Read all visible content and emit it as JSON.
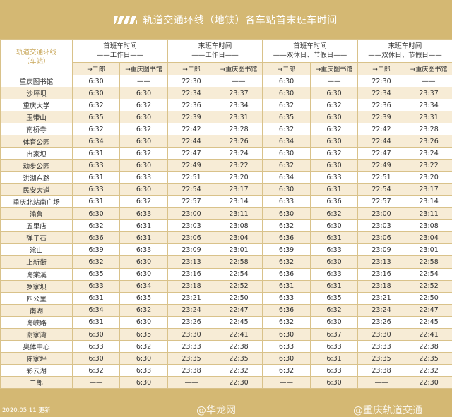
{
  "header": {
    "title": "轨道交通环线（地铁）各车站首末班车时间",
    "logo": "CRT logo"
  },
  "table": {
    "station_header": [
      "轨道交通环线",
      "（车站）"
    ],
    "groups": [
      {
        "title": "首班车时间",
        "sub": "——工作日——"
      },
      {
        "title": "末班车时间",
        "sub": "——工作日——"
      },
      {
        "title": "首班车时间",
        "sub": "——双休日、节假日——"
      },
      {
        "title": "末班车时间",
        "sub": "——双休日、节假日——"
      }
    ],
    "directions": [
      "→二郎",
      "→重庆图书馆",
      "→二郎",
      "→重庆图书馆",
      "→二郎",
      "→重庆图书馆",
      "→二郎",
      "→重庆图书馆"
    ],
    "rows": [
      [
        "重庆图书馆",
        "6:30",
        "——",
        "22:30",
        "——",
        "6:30",
        "——",
        "22:30",
        "——"
      ],
      [
        "沙坪坝",
        "6:30",
        "6:30",
        "22:34",
        "23:37",
        "6:30",
        "6:30",
        "22:34",
        "23:37"
      ],
      [
        "重庆大学",
        "6:32",
        "6:32",
        "22:36",
        "23:34",
        "6:32",
        "6:32",
        "22:36",
        "23:34"
      ],
      [
        "玉带山",
        "6:35",
        "6:30",
        "22:39",
        "23:31",
        "6:35",
        "6:30",
        "22:39",
        "23:31"
      ],
      [
        "南桥寺",
        "6:32",
        "6:32",
        "22:42",
        "23:28",
        "6:32",
        "6:32",
        "22:42",
        "23:28"
      ],
      [
        "体育公园",
        "6:34",
        "6:30",
        "22:44",
        "23:26",
        "6:34",
        "6:30",
        "22:44",
        "23:26"
      ],
      [
        "冉家坝",
        "6:31",
        "6:32",
        "22:47",
        "23:24",
        "6:30",
        "6:32",
        "22:47",
        "23:24"
      ],
      [
        "动步公园",
        "6:33",
        "6:30",
        "22:49",
        "23:22",
        "6:32",
        "6:30",
        "22:49",
        "23:22"
      ],
      [
        "洪湖东路",
        "6:31",
        "6:33",
        "22:51",
        "23:20",
        "6:34",
        "6:33",
        "22:51",
        "23:20"
      ],
      [
        "民安大道",
        "6:33",
        "6:30",
        "22:54",
        "23:17",
        "6:30",
        "6:31",
        "22:54",
        "23:17"
      ],
      [
        "重庆北站南广场",
        "6:31",
        "6:32",
        "22:57",
        "23:14",
        "6:33",
        "6:36",
        "22:57",
        "23:14"
      ],
      [
        "渝鲁",
        "6:30",
        "6:33",
        "23:00",
        "23:11",
        "6:30",
        "6:32",
        "23:00",
        "23:11"
      ],
      [
        "五里店",
        "6:32",
        "6:31",
        "23:03",
        "23:08",
        "6:32",
        "6:30",
        "23:03",
        "23:08"
      ],
      [
        "弹子石",
        "6:36",
        "6:31",
        "23:06",
        "23:04",
        "6:36",
        "6:31",
        "23:06",
        "23:04"
      ],
      [
        "涂山",
        "6:39",
        "6:33",
        "23:09",
        "23:01",
        "6:39",
        "6:33",
        "23:09",
        "23:01"
      ],
      [
        "上新街",
        "6:32",
        "6:30",
        "23:13",
        "22:58",
        "6:32",
        "6:30",
        "23:13",
        "22:58"
      ],
      [
        "海棠溪",
        "6:35",
        "6:30",
        "23:16",
        "22:54",
        "6:36",
        "6:33",
        "23:16",
        "22:54"
      ],
      [
        "罗家坝",
        "6:33",
        "6:34",
        "23:18",
        "22:52",
        "6:31",
        "6:31",
        "23:18",
        "22:52"
      ],
      [
        "四公里",
        "6:31",
        "6:35",
        "23:21",
        "22:50",
        "6:33",
        "6:35",
        "23:21",
        "22:50"
      ],
      [
        "南湖",
        "6:34",
        "6:32",
        "23:24",
        "22:47",
        "6:36",
        "6:32",
        "23:24",
        "22:47"
      ],
      [
        "海峡路",
        "6:31",
        "6:30",
        "23:26",
        "22:45",
        "6:32",
        "6:30",
        "23:26",
        "22:45"
      ],
      [
        "谢家湾",
        "6:30",
        "6:35",
        "23:30",
        "22:41",
        "6:30",
        "6:37",
        "23:30",
        "22:41"
      ],
      [
        "奥体中心",
        "6:33",
        "6:32",
        "23:33",
        "22:38",
        "6:33",
        "6:33",
        "23:33",
        "22:38"
      ],
      [
        "陈家坪",
        "6:30",
        "6:30",
        "23:35",
        "22:35",
        "6:30",
        "6:31",
        "23:35",
        "22:35"
      ],
      [
        "彩云湖",
        "6:32",
        "6:33",
        "23:38",
        "22:32",
        "6:32",
        "6:33",
        "23:38",
        "22:32"
      ],
      [
        "二郎",
        "——",
        "6:30",
        "——",
        "22:30",
        "——",
        "6:30",
        "——",
        "22:30"
      ]
    ]
  },
  "footer": {
    "updated": "2020.05.11 更新",
    "watermark1": "@华龙网",
    "watermark2": "@重庆轨道交通"
  },
  "colors": {
    "gold": "#d4b873",
    "beige": "#f7ecd6",
    "station_header": "#c9a85c"
  }
}
